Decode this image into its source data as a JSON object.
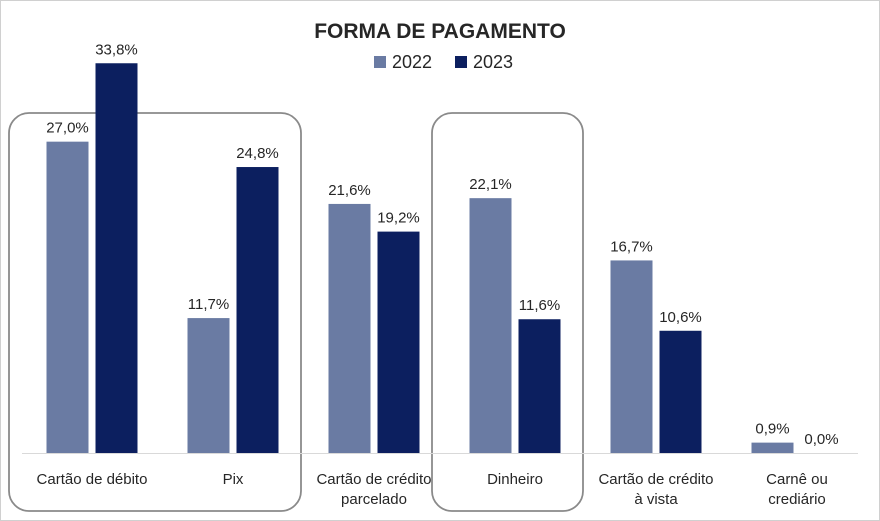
{
  "chart_data": {
    "type": "bar",
    "title": "FORMA DE PAGAMENTO",
    "categories": [
      [
        "Cartão de débito"
      ],
      [
        "Pix"
      ],
      [
        "Cartão de crédito",
        "parcelado"
      ],
      [
        "Dinheiro"
      ],
      [
        "Cartão de crédito",
        "à vista"
      ],
      [
        "Carnê ou",
        "crediário"
      ]
    ],
    "series": [
      {
        "name": "2022",
        "color": "#6a7ba3",
        "values": [
          27.0,
          11.7,
          21.6,
          22.1,
          16.7,
          0.9
        ],
        "labels": [
          "27,0%",
          "11,7%",
          "21,6%",
          "22,1%",
          "16,7%",
          "0,9%"
        ]
      },
      {
        "name": "2023",
        "color": "#0c1f5f",
        "values": [
          33.8,
          24.8,
          19.2,
          11.6,
          10.6,
          0.0
        ],
        "labels": [
          "33,8%",
          "24,8%",
          "19,2%",
          "11,6%",
          "10,6%",
          "0,0%"
        ]
      }
    ],
    "ylim": [
      0,
      35
    ],
    "xlabel": "",
    "ylabel": "",
    "legend_position": "top-center",
    "highlight_groups": [
      [
        0,
        1
      ],
      [
        3
      ]
    ]
  }
}
